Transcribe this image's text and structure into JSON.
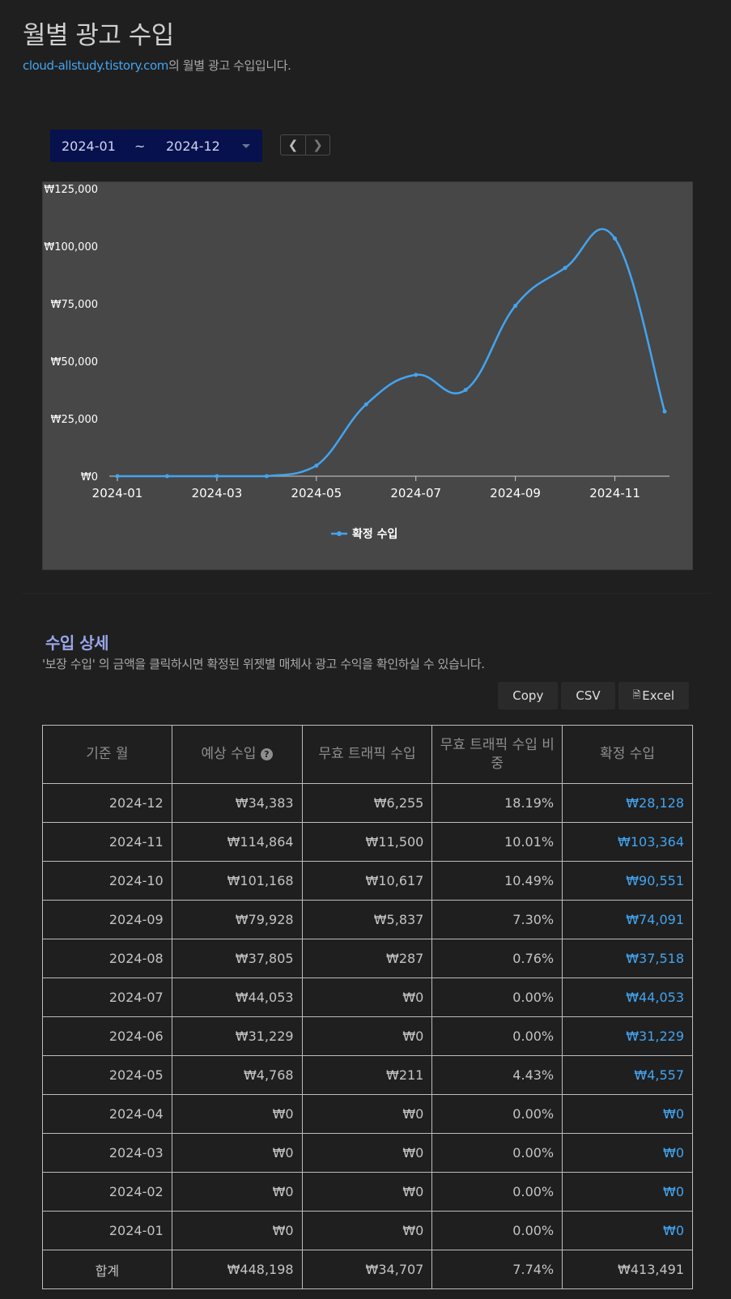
{
  "header": {
    "title": "월별 광고 수입",
    "blog_link": "cloud-allstudy.tistory.com",
    "subtitle_suffix": "의 월별 광고 수입입니다."
  },
  "range": {
    "start": "2024-01",
    "separator": "~",
    "end": "2024-12",
    "prev_icon": "chevron-left-icon",
    "next_icon": "chevron-right-icon"
  },
  "chart_data": {
    "type": "line",
    "x": [
      "2024-01",
      "2024-02",
      "2024-03",
      "2024-04",
      "2024-05",
      "2024-06",
      "2024-07",
      "2024-08",
      "2024-09",
      "2024-10",
      "2024-11",
      "2024-12"
    ],
    "x_tick_labels": [
      "2024-01",
      "2024-03",
      "2024-05",
      "2024-07",
      "2024-09",
      "2024-11"
    ],
    "series": [
      {
        "name": "확정 수입",
        "color": "#43a4f0",
        "values": [
          0,
          0,
          0,
          0,
          4557,
          31229,
          44053,
          37518,
          74091,
          90551,
          103364,
          28128
        ]
      }
    ],
    "y_ticks": [
      "₩0",
      "₩25,000",
      "₩50,000",
      "₩75,000",
      "₩100,000",
      "₩125,000"
    ],
    "ylim": [
      0,
      125000
    ],
    "legend": "bottom-center",
    "grid": false
  },
  "details": {
    "title": "수입 상세",
    "description": "'보장 수입' 의 금액을 클릭하시면 확정된 위젯별 매체사 광고 수익을 확인하실 수 있습니다.",
    "export_buttons": [
      "Copy",
      "CSV",
      "Excel"
    ],
    "excel_icon": "file-excel-icon",
    "columns": [
      "기준 월",
      "예상 수입",
      "무효 트래픽 수입",
      "무효 트래픽 수입 비중",
      "확정 수입"
    ],
    "help_icon": "question-circle-icon",
    "rows": [
      [
        "2024-12",
        "₩34,383",
        "₩6,255",
        "18.19%",
        "₩28,128"
      ],
      [
        "2024-11",
        "₩114,864",
        "₩11,500",
        "10.01%",
        "₩103,364"
      ],
      [
        "2024-10",
        "₩101,168",
        "₩10,617",
        "10.49%",
        "₩90,551"
      ],
      [
        "2024-09",
        "₩79,928",
        "₩5,837",
        "7.30%",
        "₩74,091"
      ],
      [
        "2024-08",
        "₩37,805",
        "₩287",
        "0.76%",
        "₩37,518"
      ],
      [
        "2024-07",
        "₩44,053",
        "₩0",
        "0.00%",
        "₩44,053"
      ],
      [
        "2024-06",
        "₩31,229",
        "₩0",
        "0.00%",
        "₩31,229"
      ],
      [
        "2024-05",
        "₩4,768",
        "₩211",
        "4.43%",
        "₩4,557"
      ],
      [
        "2024-04",
        "₩0",
        "₩0",
        "0.00%",
        "₩0"
      ],
      [
        "2024-03",
        "₩0",
        "₩0",
        "0.00%",
        "₩0"
      ],
      [
        "2024-02",
        "₩0",
        "₩0",
        "0.00%",
        "₩0"
      ],
      [
        "2024-01",
        "₩0",
        "₩0",
        "0.00%",
        "₩0"
      ]
    ],
    "total": [
      "합계",
      "₩448,198",
      "₩34,707",
      "7.74%",
      "₩413,491"
    ]
  }
}
